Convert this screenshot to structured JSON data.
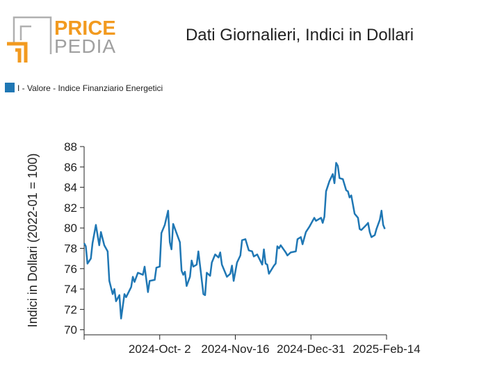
{
  "logo": {
    "top": "PRICE",
    "bottom": "PEDIA"
  },
  "chart_data": {
    "type": "line",
    "title": "Dati Giornalieri, Indici in Dollari",
    "y_label": "Indici in Dollari (2022-01 = 100)",
    "legend": "top-left",
    "grid": false,
    "xlim": [
      "2024-08-18",
      "2025-02-14"
    ],
    "xticks": [
      {
        "value": "2024-10-02",
        "label": "2024-Oct- 2"
      },
      {
        "value": "2024-11-16",
        "label": "2024-Nov-16"
      },
      {
        "value": "2024-12-31",
        "label": "2024-Dec-31"
      },
      {
        "value": "2025-02-14",
        "label": "2025-Feb-14"
      }
    ],
    "ylim": [
      69.5,
      88
    ],
    "yticks": [
      70,
      72,
      74,
      76,
      78,
      80,
      82,
      84,
      86,
      88
    ],
    "x": [
      "2024-08-18",
      "2024-08-19",
      "2024-08-20",
      "2024-08-22",
      "2024-08-23",
      "2024-08-25",
      "2024-08-27",
      "2024-08-28",
      "2024-08-30",
      "2024-09-01",
      "2024-09-02",
      "2024-09-04",
      "2024-09-05",
      "2024-09-06",
      "2024-09-08",
      "2024-09-09",
      "2024-09-11",
      "2024-09-12",
      "2024-09-15",
      "2024-09-16",
      "2024-09-17",
      "2024-09-19",
      "2024-09-22",
      "2024-09-23",
      "2024-09-25",
      "2024-09-26",
      "2024-09-29",
      "2024-09-30",
      "2024-10-02",
      "2024-10-03",
      "2024-10-05",
      "2024-10-07",
      "2024-10-08",
      "2024-10-09",
      "2024-10-10",
      "2024-10-14",
      "2024-10-15",
      "2024-10-16",
      "2024-10-17",
      "2024-10-18",
      "2024-10-20",
      "2024-10-21",
      "2024-10-22",
      "2024-10-24",
      "2024-10-25",
      "2024-10-28",
      "2024-10-29",
      "2024-10-30",
      "2024-11-01",
      "2024-11-02",
      "2024-11-04",
      "2024-11-06",
      "2024-11-07",
      "2024-11-08",
      "2024-11-10",
      "2024-11-11",
      "2024-11-13",
      "2024-11-14",
      "2024-11-15",
      "2024-11-17",
      "2024-11-19",
      "2024-11-20",
      "2024-11-22",
      "2024-11-24",
      "2024-11-26",
      "2024-11-27",
      "2024-11-29",
      "2024-12-02",
      "2024-12-03",
      "2024-12-04",
      "2024-12-05",
      "2024-12-06",
      "2024-12-09",
      "2024-12-10",
      "2024-12-11",
      "2024-12-12",
      "2024-12-13",
      "2024-12-16",
      "2024-12-17",
      "2024-12-19",
      "2024-12-22",
      "2024-12-23",
      "2024-12-25",
      "2024-12-26",
      "2024-12-28",
      "2024-12-30",
      "2025-01-02",
      "2025-01-03",
      "2025-01-06",
      "2025-01-07",
      "2025-01-08",
      "2025-01-09",
      "2025-01-11",
      "2025-01-13",
      "2025-01-14",
      "2025-01-15",
      "2025-01-16",
      "2025-01-17",
      "2025-01-19",
      "2025-01-21",
      "2025-01-22",
      "2025-01-23",
      "2025-01-24",
      "2025-01-25",
      "2025-01-26",
      "2025-01-28",
      "2025-01-29",
      "2025-01-30",
      "2025-02-02",
      "2025-02-03",
      "2025-02-04",
      "2025-02-05",
      "2025-02-07",
      "2025-02-08",
      "2025-02-10",
      "2025-02-11",
      "2025-02-12",
      "2025-02-13"
    ],
    "series": [
      {
        "name": "I - Valore - Indice Finanziario Energetici",
        "color": "#1f77b4",
        "values": [
          78.5,
          78.2,
          76.5,
          77,
          78.5,
          80.3,
          78.3,
          79.6,
          78.3,
          77.7,
          74.8,
          73.5,
          74,
          72.8,
          73.4,
          71.1,
          73.5,
          73.2,
          74.2,
          75.2,
          74.7,
          75.6,
          75.4,
          76.2,
          73.7,
          74.8,
          74.9,
          76.1,
          76.2,
          79.5,
          80.3,
          81.7,
          78.6,
          77.9,
          80.4,
          78.6,
          75.8,
          75.4,
          75.7,
          74.3,
          75.2,
          76.8,
          76.2,
          76.4,
          77.7,
          73.5,
          73.4,
          75.6,
          75.3,
          76.6,
          77.4,
          77.1,
          77.6,
          76.4,
          75.6,
          75.2,
          75.5,
          76.3,
          74.8,
          76.6,
          77.3,
          78.8,
          78.9,
          77.8,
          77.7,
          77.2,
          77.4,
          76.4,
          77.9,
          76.5,
          76.4,
          75.5,
          76.3,
          76.5,
          78.2,
          78.0,
          78.3,
          77.6,
          77.3,
          77.6,
          77.7,
          78.9,
          79.1,
          78.4,
          79.6,
          80.1,
          81.0,
          80.7,
          81.0,
          80.5,
          81.1,
          83.6,
          84.6,
          85.3,
          84.4,
          86.4,
          86.1,
          84.9,
          84.8,
          83.7,
          83.6,
          83.0,
          83.2,
          82.3,
          81.4,
          81.0,
          79.9,
          79.8,
          80.3,
          80.5,
          79.6,
          79.1,
          79.3,
          79.9,
          80.8,
          81.7,
          80.3,
          79.9
        ]
      }
    ]
  }
}
